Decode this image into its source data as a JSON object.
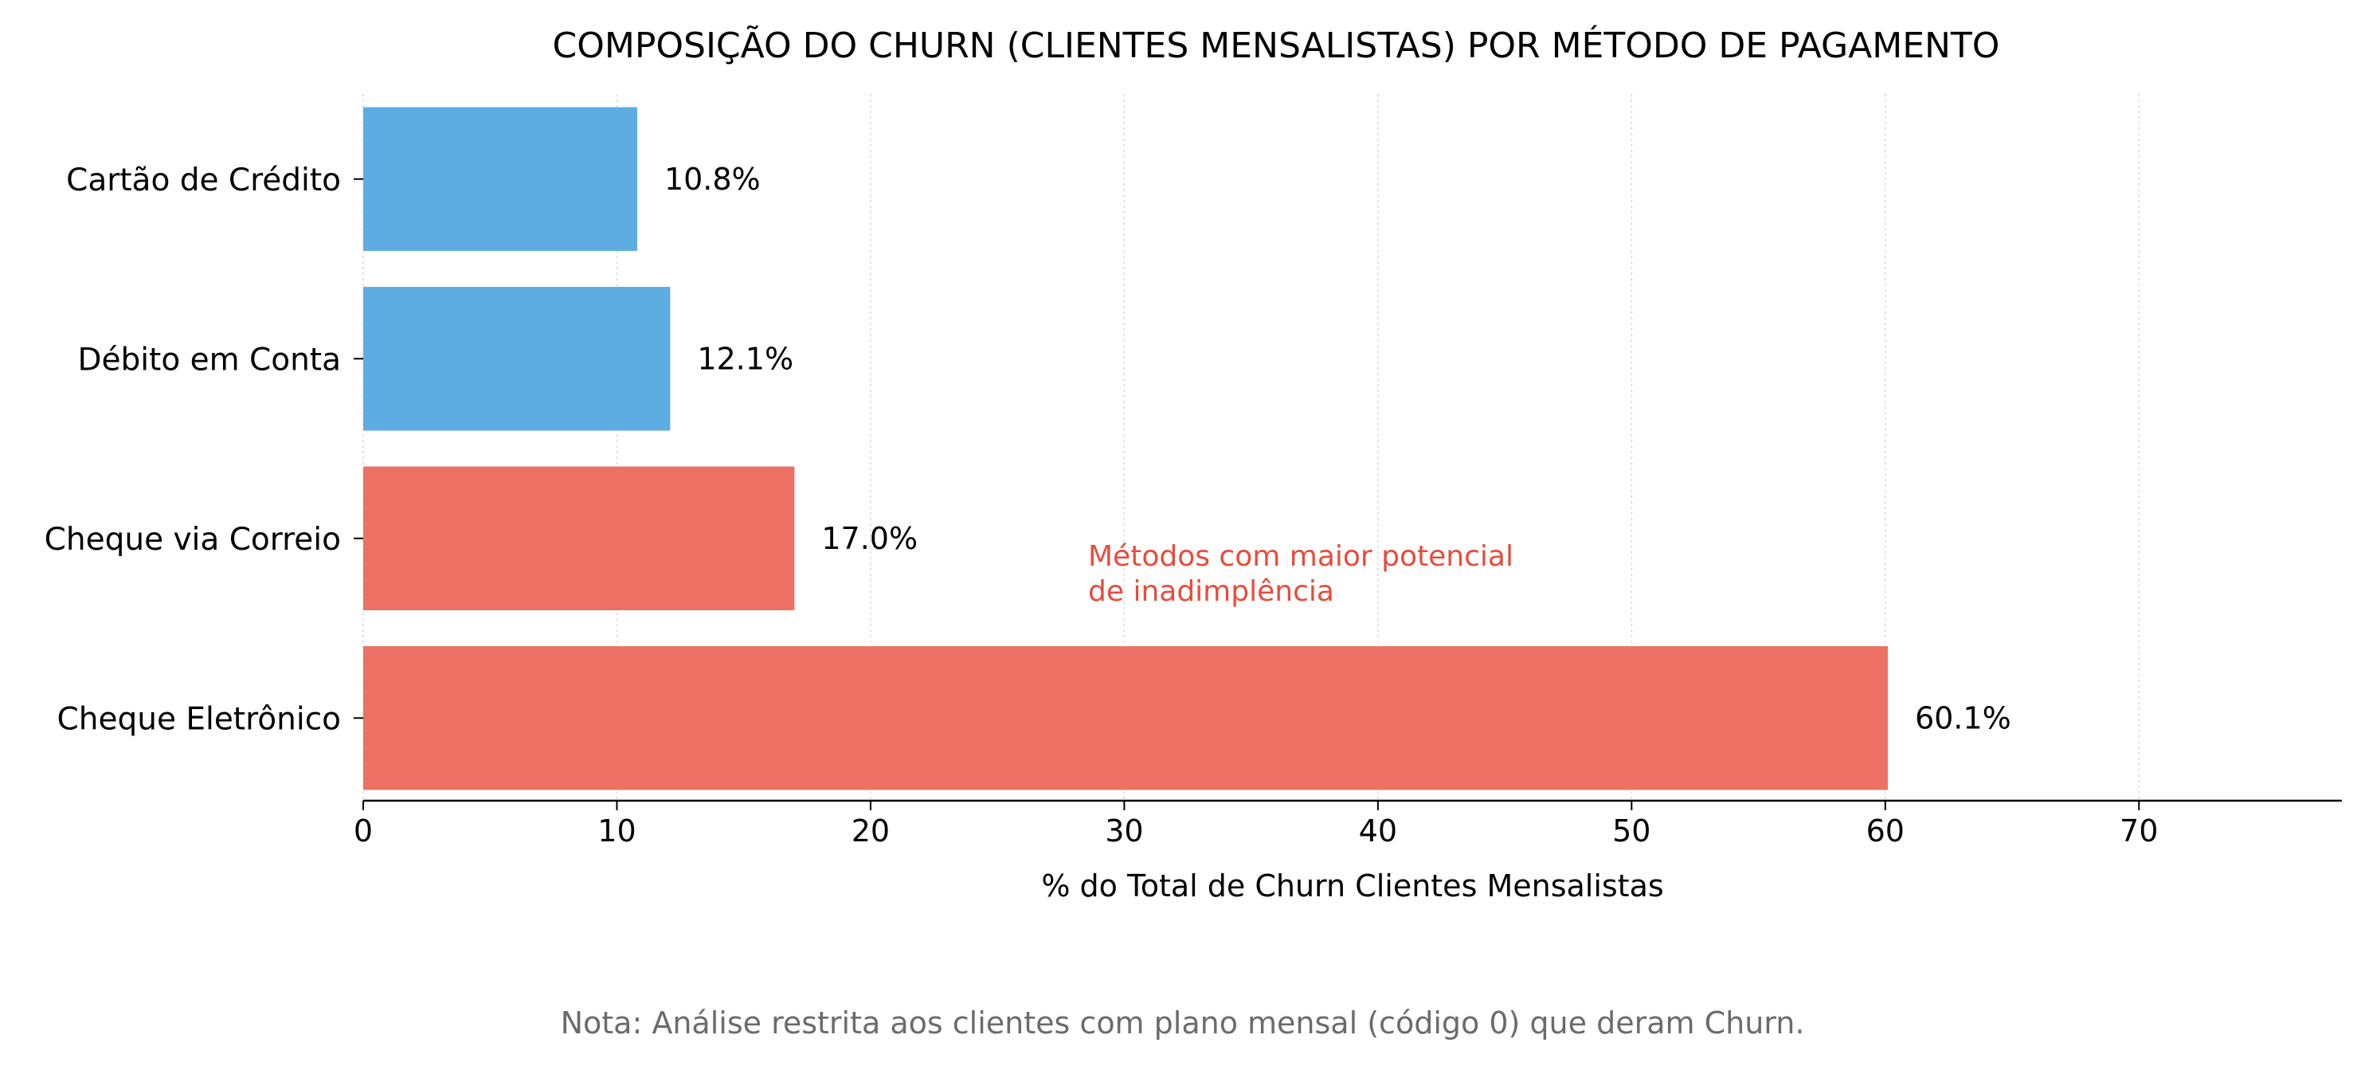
{
  "chart_data": {
    "type": "bar",
    "orientation": "horizontal",
    "title": "COMPOSIÇÃO DO CHURN (CLIENTES MENSALISTAS) POR MÉTODO DE PAGAMENTO",
    "xlabel": "% do Total de Churn Clientes Mensalistas",
    "ylabel": "",
    "categories": [
      "Cartão de Crédito",
      "Débito em Conta",
      "Cheque via Correio",
      "Cheque Eletrônico"
    ],
    "values": [
      10.8,
      12.1,
      17.0,
      60.1
    ],
    "value_labels": [
      "10.8%",
      "12.1%",
      "17.0%",
      "60.1%"
    ],
    "bar_colors": [
      "#5dade2",
      "#5dade2",
      "#ec7063",
      "#ec7063"
    ],
    "xlim": [
      0,
      78
    ],
    "xticks": [
      0,
      10,
      20,
      30,
      40,
      50,
      60,
      70
    ],
    "grid": "x, dotted",
    "legend": "none",
    "annotation": {
      "lines": [
        "Métodos com maior potencial",
        "de inadimplência"
      ],
      "color": "#e74c3c"
    }
  },
  "note": "Nota: Análise restrita aos clientes com plano mensal (código 0) que deram Churn."
}
